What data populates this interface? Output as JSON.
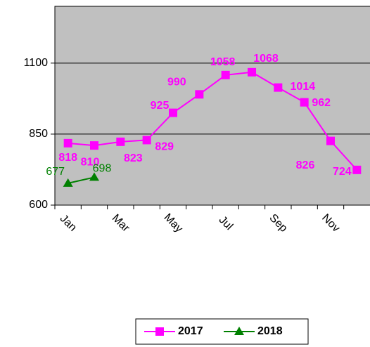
{
  "chart_data": {
    "type": "line",
    "categories": [
      "Jan",
      null,
      "Mar",
      null,
      "May",
      null,
      "Jul",
      null,
      "Sep",
      null,
      "Nov",
      null
    ],
    "series": [
      {
        "name": "2017",
        "color": "#ff00ff",
        "marker": "square",
        "values": [
          818,
          810,
          823,
          829,
          925,
          990,
          1058,
          1068,
          1014,
          962,
          826,
          724
        ]
      },
      {
        "name": "2018",
        "color": "#008000",
        "marker": "triangle",
        "values": [
          677,
          698,
          null,
          null,
          null,
          null,
          null,
          null,
          null,
          null,
          null,
          null
        ]
      }
    ],
    "ylim": [
      600,
      1300
    ],
    "yticks": [
      600,
      850,
      1100
    ],
    "grid": true,
    "plot_background": "#c0c0c0",
    "legend": "bottom"
  }
}
